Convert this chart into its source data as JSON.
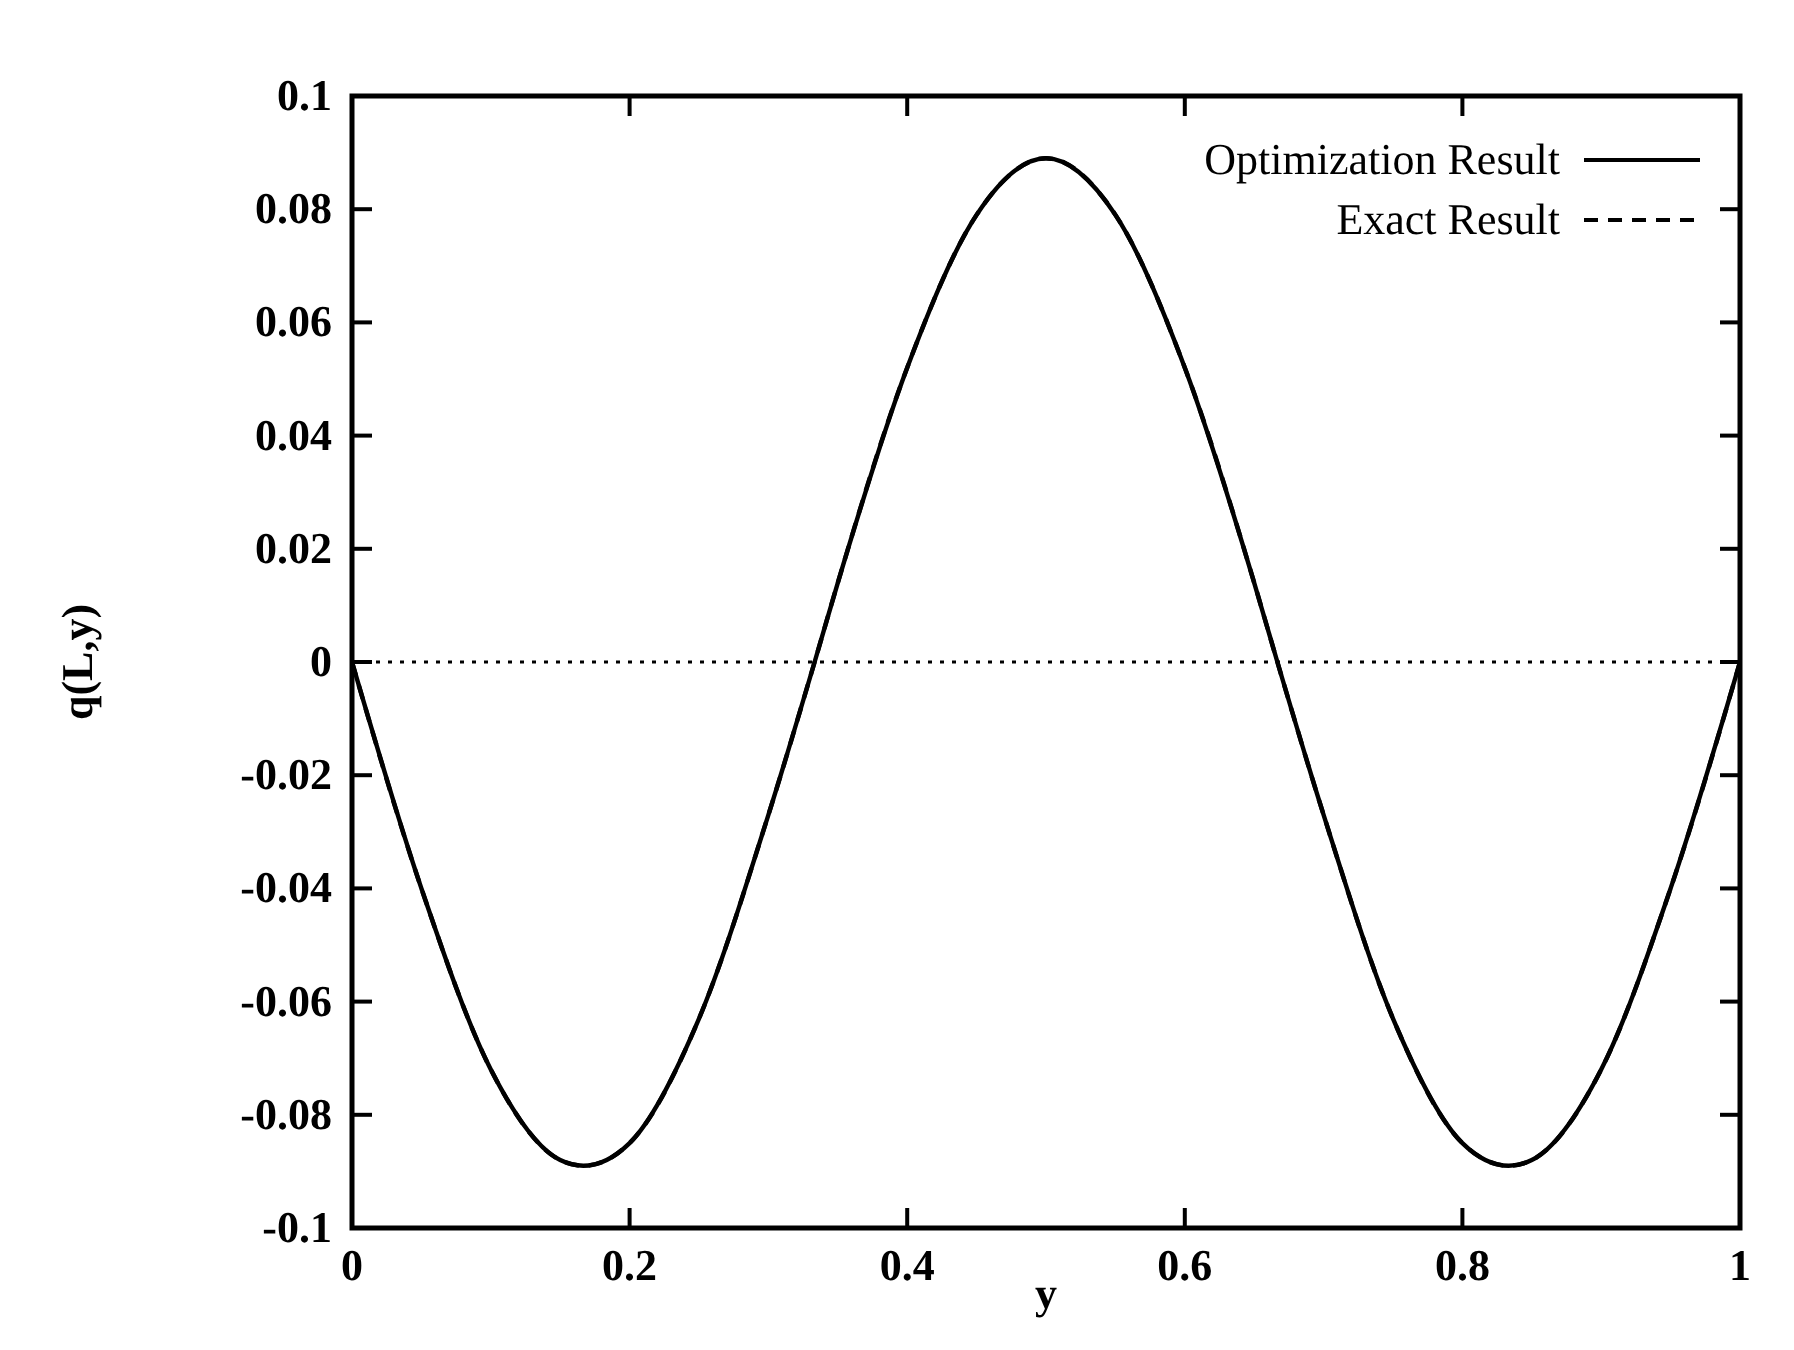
{
  "chart_data": {
    "type": "line",
    "xlabel": "y",
    "ylabel": "q(L,y)",
    "x": [
      0,
      0.05,
      0.1,
      0.15,
      0.1667,
      0.2,
      0.25,
      0.3,
      0.3333,
      0.35,
      0.4,
      0.45,
      0.5,
      0.55,
      0.6,
      0.65,
      0.6667,
      0.7,
      0.75,
      0.8,
      0.8333,
      0.85,
      0.9,
      0.95,
      1
    ],
    "series": [
      {
        "name": "Optimization Result",
        "color": "#000000",
        "line_style": "solid",
        "values": [
          0,
          -0.04,
          -0.072,
          -0.088,
          -0.089,
          -0.085,
          -0.063,
          -0.027,
          0,
          0.014,
          0.052,
          0.079,
          0.089,
          0.079,
          0.052,
          0.014,
          0,
          -0.027,
          -0.063,
          -0.085,
          -0.089,
          -0.088,
          -0.072,
          -0.04,
          0
        ]
      },
      {
        "name": "Exact Result",
        "color": "#000000",
        "line_style": "dashed",
        "values": [
          0,
          -0.04,
          -0.072,
          -0.088,
          -0.089,
          -0.085,
          -0.063,
          -0.027,
          0,
          0.014,
          0.052,
          0.079,
          0.089,
          0.079,
          0.052,
          0.014,
          0,
          -0.027,
          -0.063,
          -0.085,
          -0.089,
          -0.088,
          -0.072,
          -0.04,
          0
        ]
      }
    ],
    "xlim": [
      0,
      1
    ],
    "xticks": [
      0,
      0.2,
      0.4,
      0.6,
      0.8,
      1
    ],
    "ylim": [
      -0.1,
      0.1
    ],
    "yticks": [
      -0.1,
      -0.08,
      -0.06,
      -0.04,
      -0.02,
      0,
      0.02,
      0.04,
      0.06,
      0.08,
      0.1
    ],
    "ref_lines": [
      {
        "axis": "y",
        "value": 0,
        "line_style": "dotted",
        "color": "#000000"
      }
    ],
    "legend": "top right",
    "grid": false,
    "marker": "none"
  }
}
